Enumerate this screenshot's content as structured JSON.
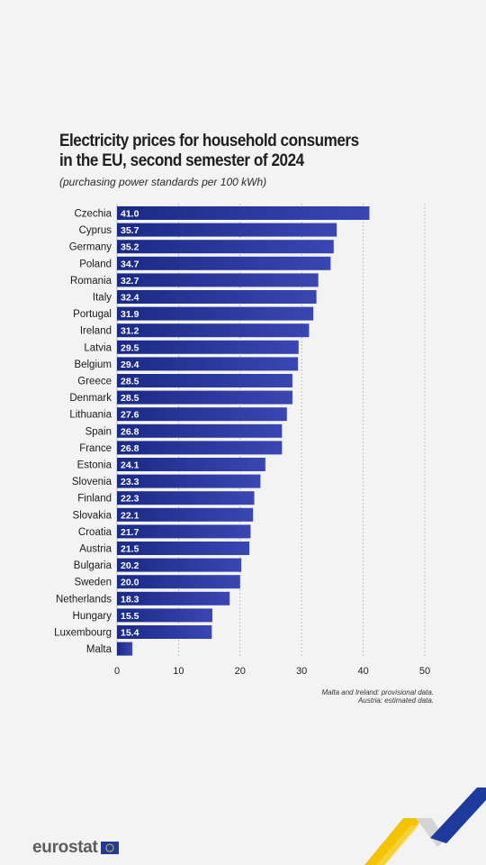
{
  "title_lines": [
    "Electricity prices for household consumers",
    "in the EU, second semester of 2024"
  ],
  "subtitle": "(purchasing power standards per 100 kWh)",
  "chart_data": {
    "type": "bar",
    "orientation": "horizontal",
    "title": "Electricity prices for household consumers in the EU, second semester of 2024",
    "subtitle": "(purchasing power standards per 100 kWh)",
    "categories": [
      "Czechia",
      "Cyprus",
      "Germany",
      "Poland",
      "Romania",
      "Italy",
      "Portugal",
      "Ireland",
      "Latvia",
      "Belgium",
      "Greece",
      "Denmark",
      "Lithuania",
      "Spain",
      "France",
      "Estonia",
      "Slovenia",
      "Finland",
      "Slovakia",
      "Croatia",
      "Austria",
      "Bulgaria",
      "Sweden",
      "Netherlands",
      "Hungary",
      "Luxembourg",
      "Malta"
    ],
    "values": [
      41.0,
      35.7,
      35.2,
      34.7,
      32.7,
      32.4,
      31.9,
      31.2,
      29.5,
      29.4,
      28.5,
      28.5,
      27.6,
      26.8,
      26.8,
      24.1,
      23.3,
      22.3,
      22.1,
      21.7,
      21.5,
      20.2,
      20.0,
      18.3,
      15.5,
      15.4,
      2.5
    ],
    "value_labels": [
      "41.0",
      "35.7",
      "35.2",
      "34.7",
      "32.7",
      "32.4",
      "31.9",
      "31.2",
      "29.5",
      "29.4",
      "28.5",
      "28.5",
      "27.6",
      "26.8",
      "26.8",
      "24.1",
      "23.3",
      "22.3",
      "22.1",
      "21.7",
      "21.5",
      "20.2",
      "20.0",
      "18.3",
      "15.5",
      "15.4",
      ""
    ],
    "xlim": [
      0,
      50
    ],
    "xticks": [
      "0",
      "10",
      "20",
      "30",
      "40",
      "50"
    ],
    "grid": true,
    "colors": {
      "bar_start": "#1a2a86",
      "bar_end": "#3a46b2",
      "grid": "#b5b5b5"
    }
  },
  "footnotes": [
    "Malta and Ireland: provisional data.",
    "Austria: estimated data."
  ],
  "branding": {
    "logo_text": "eurostat",
    "flag_icon": "eu-flag-icon",
    "colors": {
      "text": "#5c5c5c",
      "flag_bg": "#1f3c9c",
      "stars": "#ffd617",
      "accent_yellow": "#f3c300",
      "accent_blue": "#1e3a9c"
    }
  }
}
